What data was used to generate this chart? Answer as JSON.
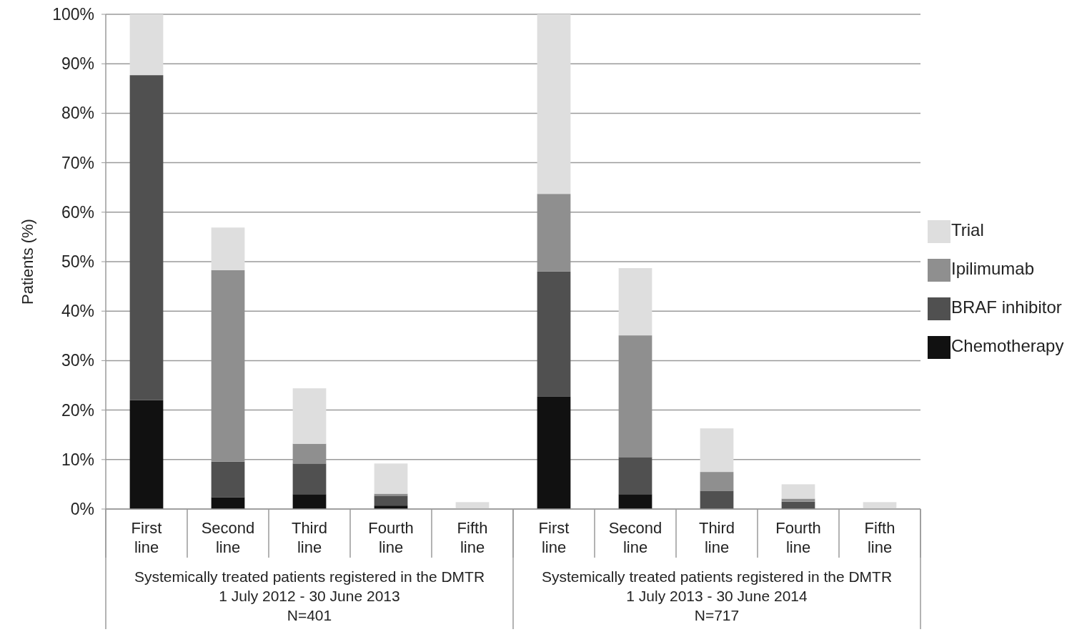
{
  "chart_data": {
    "type": "bar",
    "stacked": true,
    "ylabel": "Patients (%)",
    "categories": [
      "First line",
      "Second line",
      "Third line",
      "Fourth line",
      "Fifth line",
      "First line",
      "Second line",
      "Third line",
      "Fourth line",
      "Fifth line"
    ],
    "series": [
      {
        "name": "Chemotherapy",
        "color": "#111111",
        "values": [
          22.0,
          2.4,
          3.0,
          0.7,
          0,
          22.7,
          3.0,
          null,
          null,
          0
        ]
      },
      {
        "name": "BRAF inhibitor",
        "color": "#505050",
        "values": [
          65.7,
          7.2,
          6.2,
          2.0,
          null,
          25.3,
          7.5,
          3.7,
          1.5,
          null
        ]
      },
      {
        "name": "Ipilimumab",
        "color": "#8f8f8f",
        "values": [
          0,
          38.7,
          4.0,
          0.4,
          0,
          15.7,
          24.6,
          3.8,
          0.6,
          0
        ]
      },
      {
        "name": "Trial",
        "color": "#dedede",
        "values": [
          12.3,
          8.6,
          11.2,
          6.1,
          1.4,
          36.3,
          13.6,
          8.8,
          2.9,
          1.4
        ]
      }
    ],
    "ylim": [
      0,
      100
    ],
    "yticks": [
      {
        "value": 0,
        "label": "0%"
      },
      {
        "value": 10,
        "label": "10%"
      },
      {
        "value": 20,
        "label": "20%"
      },
      {
        "value": 30,
        "label": "30%"
      },
      {
        "value": 40,
        "label": "40%"
      },
      {
        "value": 50,
        "label": "50%"
      },
      {
        "value": 60,
        "label": "60%"
      },
      {
        "value": 70,
        "label": "70%"
      },
      {
        "value": 80,
        "label": "80%"
      },
      {
        "value": 90,
        "label": "90%"
      },
      {
        "value": 100,
        "label": "100%"
      }
    ],
    "grid": "y",
    "legend": "right",
    "annotations": [
      "Systemically treated patients registered in the DMTR\n1 July 2012 - 30 June 2013\nN=401",
      "Systemically treated patients registered in the DMTR\n1 July 2013 - 30 June 2014\nN=717"
    ]
  }
}
